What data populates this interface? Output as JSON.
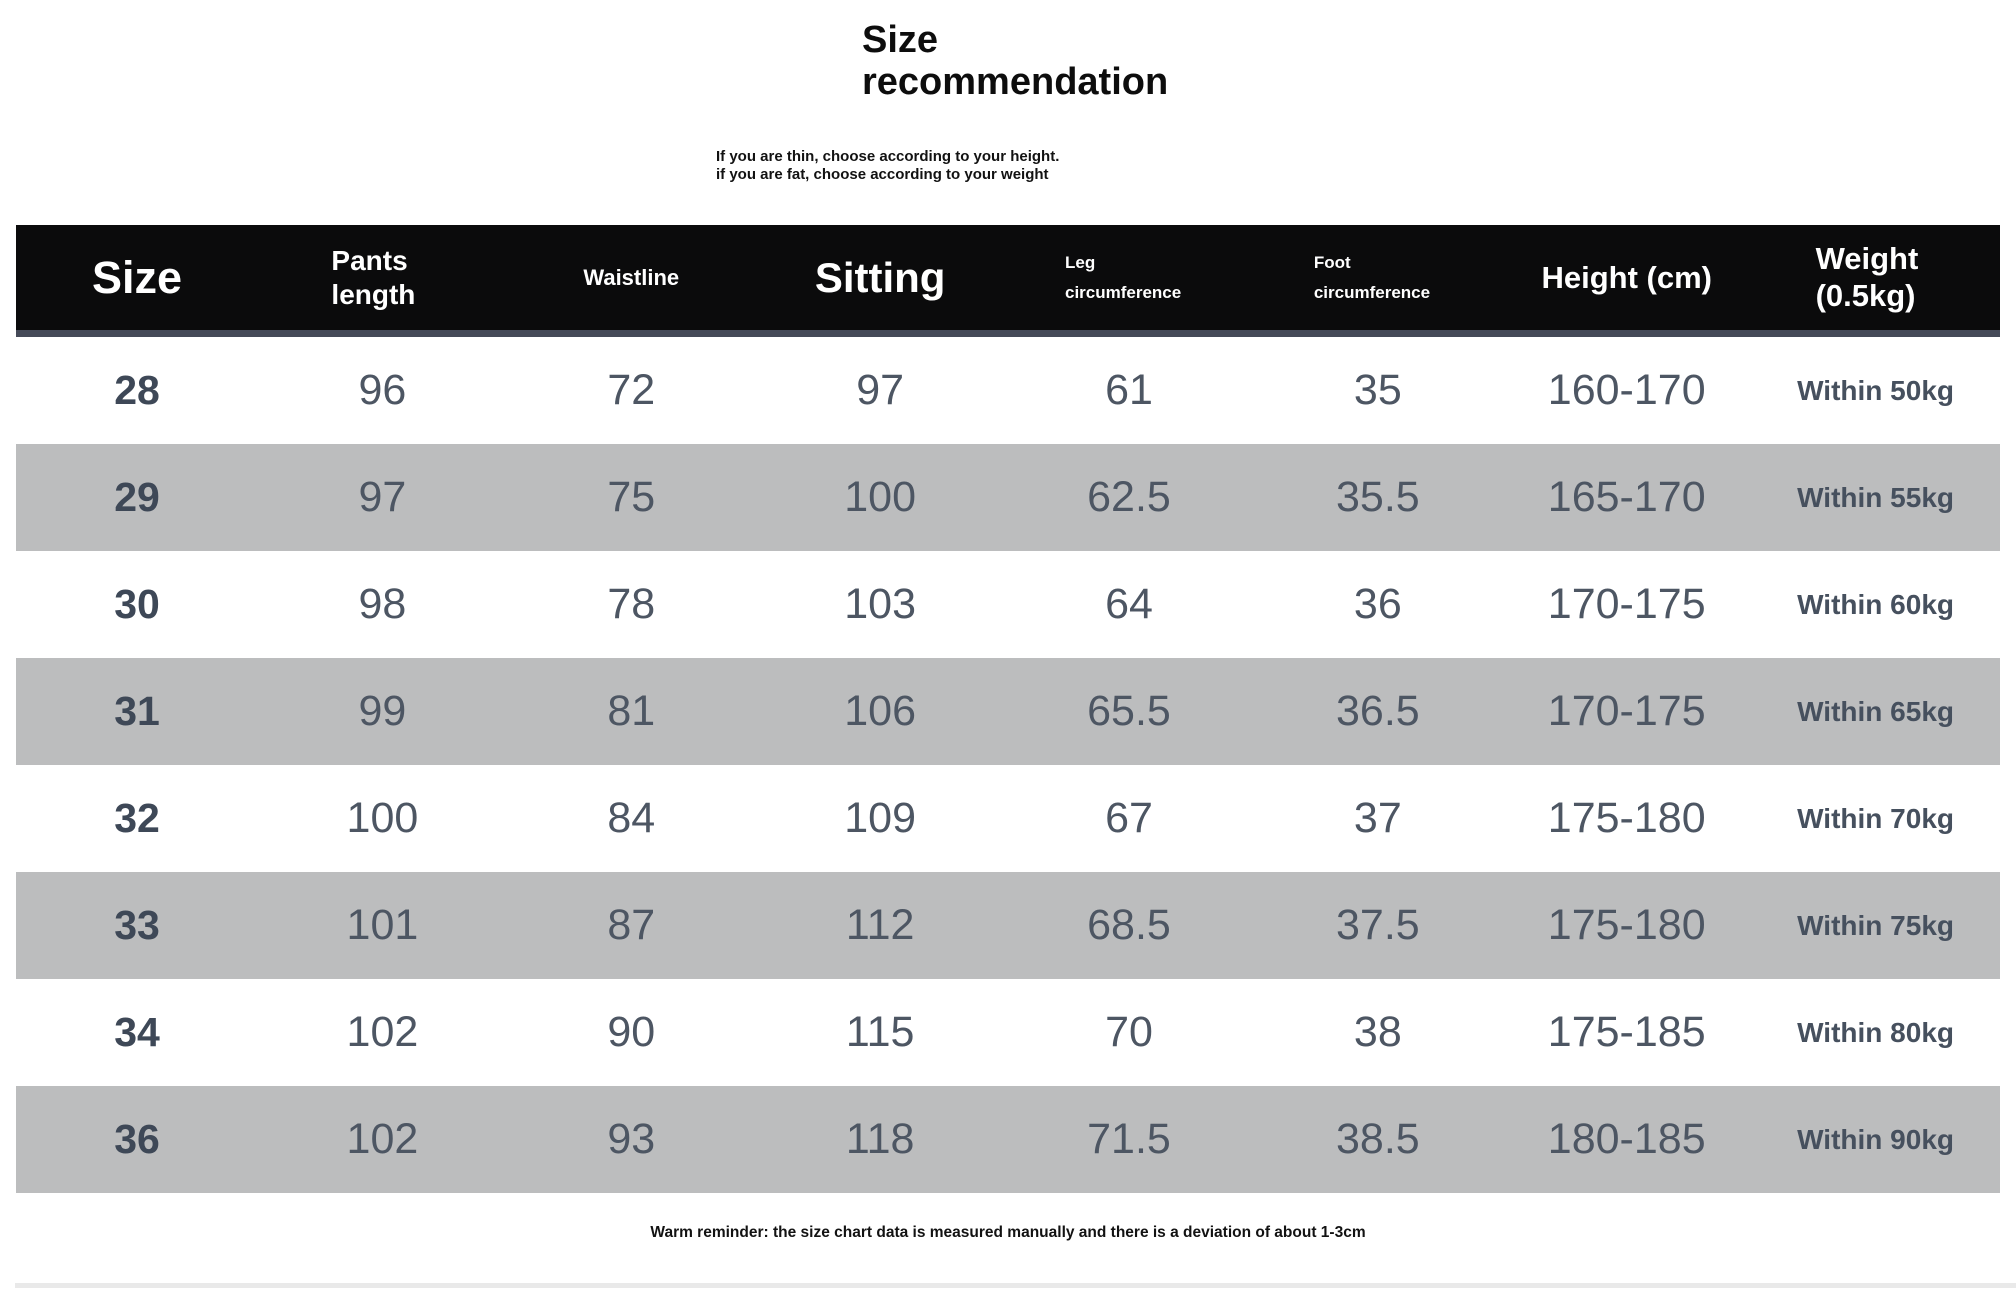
{
  "chart_data": {
    "type": "table",
    "title": "Size recommendation",
    "subtitle": "If you are thin, choose according to your height. if you are fat, choose according to your weight",
    "footer_note": "Warm reminder: the size chart data is measured manually and there is a deviation of about 1-3cm",
    "columns": [
      "Size",
      "Pants length",
      "Waistline",
      "Sitting",
      "Leg circumference",
      "Foot circumference",
      "Height (cm)",
      "Weight (0.5kg)"
    ],
    "rows": [
      [
        "28",
        "96",
        "72",
        "97",
        "61",
        "35",
        "160-170",
        "Within 50kg"
      ],
      [
        "29",
        "97",
        "75",
        "100",
        "62.5",
        "35.5",
        "165-170",
        "Within 55kg"
      ],
      [
        "30",
        "98",
        "78",
        "103",
        "64",
        "36",
        "170-175",
        "Within 60kg"
      ],
      [
        "31",
        "99",
        "81",
        "106",
        "65.5",
        "36.5",
        "170-175",
        "Within 65kg"
      ],
      [
        "32",
        "100",
        "84",
        "109",
        "67",
        "37",
        "175-180",
        "Within 70kg"
      ],
      [
        "33",
        "101",
        "87",
        "112",
        "68.5",
        "37.5",
        "175-180",
        "Within 75kg"
      ],
      [
        "34",
        "102",
        "90",
        "115",
        "70",
        "38",
        "175-185",
        "Within 80kg"
      ],
      [
        "36",
        "102",
        "93",
        "118",
        "71.5",
        "38.5",
        "180-185",
        "Within 90kg"
      ]
    ],
    "layout": {
      "row_striping": "alternating white and gray starting with white",
      "legend_position": "none",
      "grid": "off"
    }
  },
  "colors": {
    "header_bg": "#0b0b0c",
    "header_text": "#ffffff",
    "header_divider": "#454a58",
    "row_alt_bg": "#bcbdbe",
    "row_text": "#4d5663",
    "bottom_rule": "#e9e9e9"
  }
}
